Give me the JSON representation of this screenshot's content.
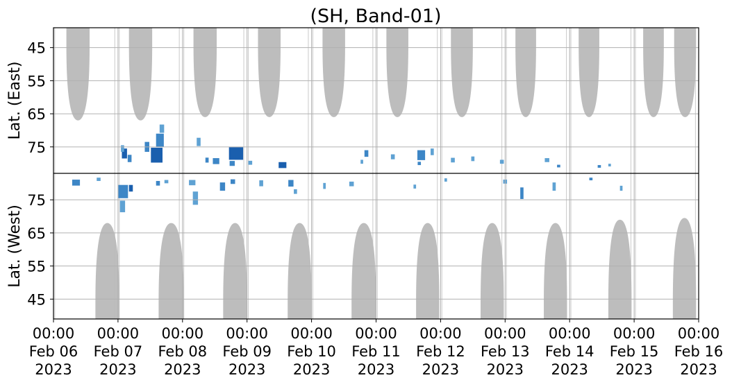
{
  "chart_data": {
    "type": "heatmap",
    "title": "(SH, Band-01)",
    "panels": [
      {
        "name": "east",
        "ylabel": "Lat. (East)",
        "ylim": [
          83,
          39
        ],
        "yticks": [
          45,
          55,
          65,
          75
        ]
      },
      {
        "name": "west",
        "ylabel": "Lat. (West)",
        "ylim": [
          83,
          39
        ],
        "yticks": [
          75,
          65,
          55,
          45
        ]
      }
    ],
    "xrange": [
      "2023-02-06 00:00",
      "2023-02-16 00:00"
    ],
    "xticks": [
      {
        "date": "2023-02-06",
        "time": "00:00",
        "day": "Feb 06",
        "year": "2023"
      },
      {
        "date": "2023-02-07",
        "time": "00:00",
        "day": "Feb 07",
        "year": "2023"
      },
      {
        "date": "2023-02-08",
        "time": "00:00",
        "day": "Feb 08",
        "year": "2023"
      },
      {
        "date": "2023-02-09",
        "time": "00:00",
        "day": "Feb 09",
        "year": "2023"
      },
      {
        "date": "2023-02-10",
        "time": "00:00",
        "day": "Feb 10",
        "year": "2023"
      },
      {
        "date": "2023-02-11",
        "time": "00:00",
        "day": "Feb 11",
        "year": "2023"
      },
      {
        "date": "2023-02-12",
        "time": "00:00",
        "day": "Feb 12",
        "year": "2023"
      },
      {
        "date": "2023-02-13",
        "time": "00:00",
        "day": "Feb 13",
        "year": "2023"
      },
      {
        "date": "2023-02-14",
        "time": "00:00",
        "day": "Feb 14",
        "year": "2023"
      },
      {
        "date": "2023-02-15",
        "time": "00:00",
        "day": "Feb 15",
        "year": "2023"
      },
      {
        "date": "2023-02-16",
        "time": "00:00",
        "day": "Feb 16",
        "year": "2023"
      }
    ],
    "grid": true,
    "colors": {
      "daylight": "#bdbdbd",
      "echo_light": "#5fa2d3",
      "echo_mid": "#3d86c6",
      "echo_dark": "#1a5fae",
      "grid": "#b0b0b0",
      "divider": "#000000"
    },
    "daylight_regions": {
      "east": [
        {
          "start": 0.2,
          "end": 0.56,
          "lat_min": 67
        },
        {
          "start": 1.17,
          "end": 1.53,
          "lat_min": 67
        },
        {
          "start": 2.17,
          "end": 2.53,
          "lat_min": 66
        },
        {
          "start": 3.17,
          "end": 3.52,
          "lat_min": 66
        },
        {
          "start": 4.17,
          "end": 4.52,
          "lat_min": 66
        },
        {
          "start": 5.16,
          "end": 5.5,
          "lat_min": 66
        },
        {
          "start": 6.16,
          "end": 6.5,
          "lat_min": 66
        },
        {
          "start": 7.16,
          "end": 7.48,
          "lat_min": 66
        },
        {
          "start": 8.14,
          "end": 8.46,
          "lat_min": 66
        },
        {
          "start": 9.14,
          "end": 9.46,
          "lat_min": 66
        },
        {
          "start": 9.62,
          "end": 9.96,
          "lat_min": 66
        }
      ],
      "west": [
        {
          "start": 0.65,
          "end": 1.02,
          "lat_min": 68
        },
        {
          "start": 1.63,
          "end": 2.02,
          "lat_min": 68
        },
        {
          "start": 2.63,
          "end": 3.0,
          "lat_min": 68
        },
        {
          "start": 3.63,
          "end": 4.0,
          "lat_min": 68
        },
        {
          "start": 4.62,
          "end": 5.0,
          "lat_min": 68
        },
        {
          "start": 5.62,
          "end": 5.98,
          "lat_min": 68
        },
        {
          "start": 6.62,
          "end": 6.98,
          "lat_min": 68
        },
        {
          "start": 7.6,
          "end": 7.96,
          "lat_min": 68
        },
        {
          "start": 8.6,
          "end": 8.96,
          "lat_min": 69
        },
        {
          "start": 9.6,
          "end": 9.96,
          "lat_min": 69.5
        }
      ]
    },
    "echo_clusters": {
      "east": [
        {
          "day": 1.1,
          "lat": 77,
          "dt": 0.08,
          "dlat": 3.0,
          "level": "dark"
        },
        {
          "day": 1.18,
          "lat": 78.5,
          "dt": 0.06,
          "dlat": 2.2,
          "level": "mid"
        },
        {
          "day": 1.07,
          "lat": 75.5,
          "dt": 0.05,
          "dlat": 2.0,
          "level": "light"
        },
        {
          "day": 1.6,
          "lat": 77.5,
          "dt": 0.18,
          "dlat": 4.5,
          "level": "dark"
        },
        {
          "day": 1.65,
          "lat": 73.0,
          "dt": 0.12,
          "dlat": 4.0,
          "level": "mid"
        },
        {
          "day": 1.68,
          "lat": 69.5,
          "dt": 0.07,
          "dlat": 2.5,
          "level": "light"
        },
        {
          "day": 1.45,
          "lat": 75.0,
          "dt": 0.07,
          "dlat": 3.0,
          "level": "mid"
        },
        {
          "day": 2.25,
          "lat": 73.5,
          "dt": 0.06,
          "dlat": 2.5,
          "level": "light"
        },
        {
          "day": 2.38,
          "lat": 79.0,
          "dt": 0.05,
          "dlat": 1.5,
          "level": "mid"
        },
        {
          "day": 2.52,
          "lat": 79.3,
          "dt": 0.1,
          "dlat": 1.8,
          "level": "mid"
        },
        {
          "day": 2.83,
          "lat": 77.0,
          "dt": 0.22,
          "dlat": 3.8,
          "level": "dark"
        },
        {
          "day": 2.77,
          "lat": 80.0,
          "dt": 0.08,
          "dlat": 1.5,
          "level": "mid"
        },
        {
          "day": 3.05,
          "lat": 79.8,
          "dt": 0.06,
          "dlat": 1.2,
          "level": "light"
        },
        {
          "day": 3.55,
          "lat": 80.5,
          "dt": 0.12,
          "dlat": 1.8,
          "level": "dark"
        },
        {
          "day": 4.85,
          "lat": 77.0,
          "dt": 0.06,
          "dlat": 2.0,
          "level": "mid"
        },
        {
          "day": 4.78,
          "lat": 79.5,
          "dt": 0.04,
          "dlat": 1.2,
          "level": "light"
        },
        {
          "day": 5.26,
          "lat": 78.0,
          "dt": 0.06,
          "dlat": 1.5,
          "level": "light"
        },
        {
          "day": 5.7,
          "lat": 77.5,
          "dt": 0.12,
          "dlat": 3.0,
          "level": "mid"
        },
        {
          "day": 5.87,
          "lat": 76.5,
          "dt": 0.05,
          "dlat": 2.0,
          "level": "light"
        },
        {
          "day": 5.67,
          "lat": 80.0,
          "dt": 0.05,
          "dlat": 1.0,
          "level": "mid"
        },
        {
          "day": 6.19,
          "lat": 79.0,
          "dt": 0.06,
          "dlat": 1.4,
          "level": "light"
        },
        {
          "day": 6.5,
          "lat": 78.6,
          "dt": 0.05,
          "dlat": 1.4,
          "level": "light"
        },
        {
          "day": 6.95,
          "lat": 79.5,
          "dt": 0.06,
          "dlat": 1.2,
          "level": "light"
        },
        {
          "day": 7.65,
          "lat": 79.0,
          "dt": 0.07,
          "dlat": 1.2,
          "level": "light"
        },
        {
          "day": 7.83,
          "lat": 80.8,
          "dt": 0.05,
          "dlat": 0.8,
          "level": "mid"
        },
        {
          "day": 8.46,
          "lat": 80.9,
          "dt": 0.05,
          "dlat": 0.8,
          "level": "mid"
        },
        {
          "day": 8.62,
          "lat": 80.5,
          "dt": 0.04,
          "dlat": 0.8,
          "level": "light"
        }
      ],
      "west": [
        {
          "day": 0.35,
          "lat": 80.2,
          "dt": 0.12,
          "dlat": 1.8,
          "level": "mid"
        },
        {
          "day": 0.7,
          "lat": 81.2,
          "dt": 0.06,
          "dlat": 1.0,
          "level": "light"
        },
        {
          "day": 1.08,
          "lat": 77.5,
          "dt": 0.15,
          "dlat": 4.0,
          "level": "mid"
        },
        {
          "day": 1.07,
          "lat": 73.0,
          "dt": 0.08,
          "dlat": 3.5,
          "level": "light"
        },
        {
          "day": 1.2,
          "lat": 78.5,
          "dt": 0.06,
          "dlat": 2.0,
          "level": "dark"
        },
        {
          "day": 1.62,
          "lat": 80.0,
          "dt": 0.06,
          "dlat": 1.4,
          "level": "mid"
        },
        {
          "day": 1.75,
          "lat": 80.5,
          "dt": 0.06,
          "dlat": 1.0,
          "level": "light"
        },
        {
          "day": 2.15,
          "lat": 80.2,
          "dt": 0.1,
          "dlat": 1.6,
          "level": "light"
        },
        {
          "day": 2.2,
          "lat": 75.5,
          "dt": 0.08,
          "dlat": 4.0,
          "level": "light"
        },
        {
          "day": 2.62,
          "lat": 79.0,
          "dt": 0.08,
          "dlat": 2.5,
          "level": "mid"
        },
        {
          "day": 2.78,
          "lat": 80.5,
          "dt": 0.07,
          "dlat": 1.4,
          "level": "mid"
        },
        {
          "day": 3.22,
          "lat": 80.0,
          "dt": 0.06,
          "dlat": 1.8,
          "level": "light"
        },
        {
          "day": 3.68,
          "lat": 80.0,
          "dt": 0.08,
          "dlat": 2.0,
          "level": "mid"
        },
        {
          "day": 3.75,
          "lat": 77.5,
          "dt": 0.05,
          "dlat": 1.4,
          "level": "light"
        },
        {
          "day": 4.2,
          "lat": 79.2,
          "dt": 0.04,
          "dlat": 1.8,
          "level": "light"
        },
        {
          "day": 4.62,
          "lat": 79.8,
          "dt": 0.07,
          "dlat": 1.4,
          "level": "light"
        },
        {
          "day": 5.6,
          "lat": 79.0,
          "dt": 0.04,
          "dlat": 1.2,
          "level": "light"
        },
        {
          "day": 6.08,
          "lat": 81.0,
          "dt": 0.04,
          "dlat": 1.0,
          "level": "light"
        },
        {
          "day": 7.0,
          "lat": 80.5,
          "dt": 0.06,
          "dlat": 1.2,
          "level": "light"
        },
        {
          "day": 7.26,
          "lat": 77.0,
          "dt": 0.05,
          "dlat": 3.5,
          "level": "mid"
        },
        {
          "day": 7.76,
          "lat": 79.0,
          "dt": 0.05,
          "dlat": 2.5,
          "level": "light"
        },
        {
          "day": 8.33,
          "lat": 81.3,
          "dt": 0.05,
          "dlat": 0.8,
          "level": "mid"
        },
        {
          "day": 8.8,
          "lat": 78.5,
          "dt": 0.04,
          "dlat": 1.5,
          "level": "light"
        }
      ]
    }
  }
}
